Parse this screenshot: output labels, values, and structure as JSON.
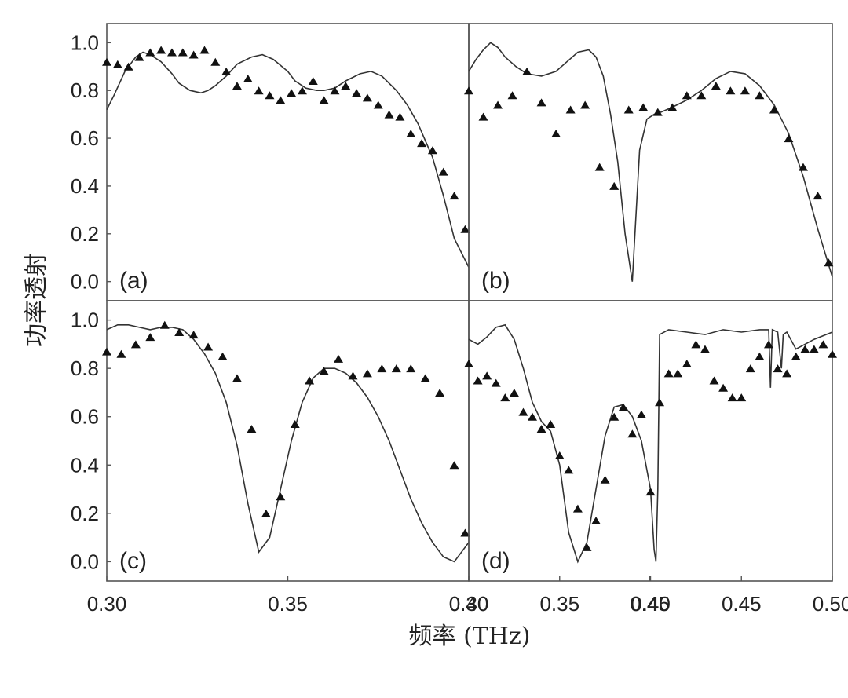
{
  "figure": {
    "xlabel": "频率 (THz)",
    "ylabel": "功率透射",
    "text_color": "#222222",
    "line_color": "#333333",
    "marker_color": "#111111"
  },
  "chart_data": [
    {
      "type": "line",
      "panel_label": "(a)",
      "xlim": [
        0.3,
        0.4
      ],
      "ylim": [
        -0.08,
        1.08
      ],
      "xticks": [],
      "yticks": [
        "0.0",
        "0.2",
        "0.4",
        "0.6",
        "0.8",
        "1.0"
      ],
      "grid": false,
      "series": [
        {
          "kind": "line",
          "x": [
            0.3,
            0.302,
            0.305,
            0.308,
            0.31,
            0.312,
            0.315,
            0.318,
            0.32,
            0.323,
            0.326,
            0.328,
            0.33,
            0.333,
            0.336,
            0.34,
            0.343,
            0.346,
            0.35,
            0.352,
            0.355,
            0.358,
            0.36,
            0.363,
            0.366,
            0.37,
            0.373,
            0.376,
            0.38,
            0.383,
            0.386,
            0.39,
            0.393,
            0.396,
            0.4
          ],
          "y": [
            0.72,
            0.78,
            0.88,
            0.94,
            0.96,
            0.95,
            0.92,
            0.87,
            0.83,
            0.8,
            0.79,
            0.8,
            0.82,
            0.86,
            0.91,
            0.94,
            0.95,
            0.93,
            0.88,
            0.84,
            0.81,
            0.8,
            0.8,
            0.81,
            0.84,
            0.87,
            0.88,
            0.86,
            0.8,
            0.74,
            0.66,
            0.52,
            0.36,
            0.18,
            0.06
          ]
        },
        {
          "kind": "scatter",
          "x": [
            0.3,
            0.303,
            0.306,
            0.309,
            0.312,
            0.315,
            0.318,
            0.321,
            0.324,
            0.327,
            0.33,
            0.333,
            0.336,
            0.339,
            0.342,
            0.345,
            0.348,
            0.351,
            0.354,
            0.357,
            0.36,
            0.363,
            0.366,
            0.369,
            0.372,
            0.375,
            0.378,
            0.381,
            0.384,
            0.387,
            0.39,
            0.393,
            0.396,
            0.399
          ],
          "y": [
            0.92,
            0.91,
            0.9,
            0.94,
            0.96,
            0.97,
            0.96,
            0.96,
            0.95,
            0.97,
            0.92,
            0.88,
            0.82,
            0.85,
            0.8,
            0.78,
            0.76,
            0.79,
            0.8,
            0.84,
            0.76,
            0.8,
            0.82,
            0.79,
            0.77,
            0.74,
            0.7,
            0.69,
            0.62,
            0.58,
            0.55,
            0.46,
            0.36,
            0.22
          ]
        }
      ]
    },
    {
      "type": "line",
      "panel_label": "(b)",
      "xlim": [
        0.3,
        0.4
      ],
      "ylim": [
        -0.08,
        1.08
      ],
      "xticks": [],
      "yticks": [],
      "grid": false,
      "series": [
        {
          "kind": "line",
          "x": [
            0.3,
            0.302,
            0.304,
            0.306,
            0.308,
            0.31,
            0.313,
            0.316,
            0.32,
            0.324,
            0.327,
            0.33,
            0.333,
            0.335,
            0.337,
            0.339,
            0.341,
            0.343,
            0.345,
            0.347,
            0.349,
            0.351,
            0.353,
            0.356,
            0.36,
            0.364,
            0.368,
            0.372,
            0.376,
            0.38,
            0.384,
            0.388,
            0.392,
            0.396,
            0.4
          ],
          "y": [
            0.88,
            0.93,
            0.97,
            1.0,
            0.98,
            0.94,
            0.9,
            0.87,
            0.86,
            0.88,
            0.92,
            0.96,
            0.97,
            0.94,
            0.86,
            0.7,
            0.5,
            0.2,
            0.0,
            0.55,
            0.68,
            0.7,
            0.71,
            0.73,
            0.76,
            0.8,
            0.85,
            0.88,
            0.87,
            0.82,
            0.74,
            0.62,
            0.44,
            0.22,
            0.02
          ]
        },
        {
          "kind": "scatter",
          "x": [
            0.3,
            0.304,
            0.308,
            0.312,
            0.316,
            0.32,
            0.324,
            0.328,
            0.332,
            0.336,
            0.34,
            0.344,
            0.348,
            0.352,
            0.356,
            0.36,
            0.364,
            0.368,
            0.372,
            0.376,
            0.38,
            0.384,
            0.388,
            0.392,
            0.396,
            0.399
          ],
          "y": [
            0.8,
            0.69,
            0.74,
            0.78,
            0.88,
            0.75,
            0.62,
            0.72,
            0.74,
            0.48,
            0.4,
            0.72,
            0.73,
            0.71,
            0.73,
            0.78,
            0.78,
            0.82,
            0.8,
            0.8,
            0.78,
            0.72,
            0.6,
            0.48,
            0.36,
            0.08
          ]
        }
      ]
    },
    {
      "type": "line",
      "panel_label": "(c)",
      "xlim": [
        0.3,
        0.4
      ],
      "ylim": [
        -0.08,
        1.08
      ],
      "xticks": [
        "0.30",
        "0.35",
        "0.40",
        "0.45"
      ],
      "yticks": [
        "0.0",
        "0.2",
        "0.4",
        "0.6",
        "0.8",
        "1.0"
      ],
      "grid": false,
      "series": [
        {
          "kind": "line",
          "x": [
            0.3,
            0.303,
            0.306,
            0.309,
            0.312,
            0.315,
            0.318,
            0.321,
            0.324,
            0.327,
            0.33,
            0.333,
            0.336,
            0.339,
            0.342,
            0.345,
            0.348,
            0.351,
            0.354,
            0.357,
            0.36,
            0.363,
            0.366,
            0.369,
            0.372,
            0.375,
            0.378,
            0.381,
            0.384,
            0.387,
            0.39,
            0.393,
            0.396,
            0.4
          ],
          "y": [
            0.96,
            0.98,
            0.98,
            0.97,
            0.96,
            0.97,
            0.97,
            0.96,
            0.92,
            0.86,
            0.78,
            0.66,
            0.48,
            0.24,
            0.04,
            0.1,
            0.3,
            0.5,
            0.66,
            0.76,
            0.8,
            0.8,
            0.78,
            0.74,
            0.68,
            0.6,
            0.5,
            0.38,
            0.26,
            0.16,
            0.08,
            0.02,
            0.0,
            0.08
          ]
        },
        {
          "kind": "scatter",
          "x": [
            0.3,
            0.304,
            0.308,
            0.312,
            0.316,
            0.32,
            0.324,
            0.328,
            0.332,
            0.336,
            0.34,
            0.344,
            0.348,
            0.352,
            0.356,
            0.36,
            0.364,
            0.368,
            0.372,
            0.376,
            0.38,
            0.384,
            0.388,
            0.392,
            0.396,
            0.399
          ],
          "y": [
            0.87,
            0.86,
            0.9,
            0.93,
            0.98,
            0.95,
            0.94,
            0.89,
            0.85,
            0.76,
            0.55,
            0.2,
            0.27,
            0.57,
            0.75,
            0.79,
            0.84,
            0.77,
            0.78,
            0.8,
            0.8,
            0.8,
            0.76,
            0.7,
            0.4,
            0.12
          ]
        }
      ]
    },
    {
      "type": "line",
      "panel_label": "(d)",
      "xlim": [
        0.3,
        0.5
      ],
      "ylim": [
        -0.08,
        1.08
      ],
      "xticks": [
        "0.30",
        "0.35",
        "0.40",
        "0.45",
        "0.50"
      ],
      "yticks": [],
      "grid": false,
      "series": [
        {
          "kind": "line",
          "x": [
            0.3,
            0.305,
            0.31,
            0.315,
            0.32,
            0.325,
            0.33,
            0.335,
            0.34,
            0.345,
            0.35,
            0.355,
            0.36,
            0.365,
            0.37,
            0.375,
            0.38,
            0.385,
            0.39,
            0.395,
            0.4,
            0.402,
            0.403,
            0.404,
            0.405,
            0.41,
            0.42,
            0.43,
            0.44,
            0.45,
            0.46,
            0.465,
            0.466,
            0.467,
            0.47,
            0.472,
            0.473,
            0.475,
            0.48,
            0.49,
            0.5
          ],
          "y": [
            0.92,
            0.9,
            0.93,
            0.97,
            0.98,
            0.92,
            0.8,
            0.66,
            0.58,
            0.54,
            0.4,
            0.12,
            0.0,
            0.08,
            0.3,
            0.52,
            0.64,
            0.65,
            0.6,
            0.5,
            0.3,
            0.05,
            0.0,
            0.3,
            0.94,
            0.96,
            0.95,
            0.94,
            0.96,
            0.95,
            0.96,
            0.96,
            0.72,
            0.96,
            0.95,
            0.8,
            0.94,
            0.95,
            0.88,
            0.92,
            0.95
          ]
        },
        {
          "kind": "scatter",
          "x": [
            0.3,
            0.305,
            0.31,
            0.315,
            0.32,
            0.325,
            0.33,
            0.335,
            0.34,
            0.345,
            0.35,
            0.355,
            0.36,
            0.365,
            0.37,
            0.375,
            0.38,
            0.385,
            0.39,
            0.395,
            0.4,
            0.405,
            0.41,
            0.415,
            0.42,
            0.425,
            0.43,
            0.435,
            0.44,
            0.445,
            0.45,
            0.455,
            0.46,
            0.465,
            0.47,
            0.475,
            0.48,
            0.485,
            0.49,
            0.495,
            0.5
          ],
          "y": [
            0.82,
            0.75,
            0.77,
            0.74,
            0.68,
            0.7,
            0.62,
            0.6,
            0.55,
            0.57,
            0.44,
            0.38,
            0.22,
            0.06,
            0.17,
            0.34,
            0.6,
            0.64,
            0.53,
            0.61,
            0.29,
            0.66,
            0.78,
            0.78,
            0.82,
            0.9,
            0.88,
            0.75,
            0.72,
            0.68,
            0.68,
            0.8,
            0.85,
            0.9,
            0.8,
            0.78,
            0.85,
            0.88,
            0.88,
            0.9,
            0.86
          ]
        }
      ]
    }
  ]
}
